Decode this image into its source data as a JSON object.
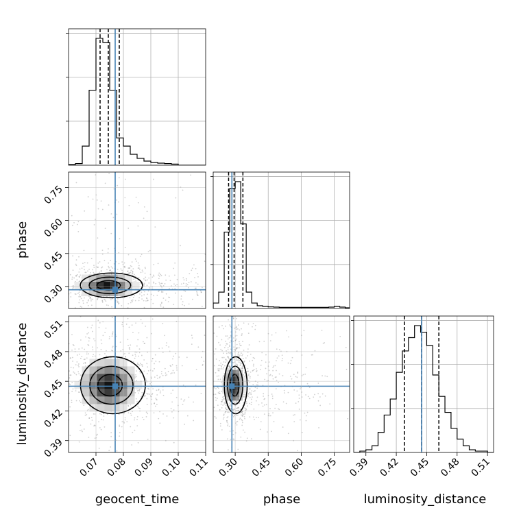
{
  "chart_data": {
    "type": "corner",
    "grid": true,
    "parameters": [
      "geocent_time",
      "phase",
      "luminosity_distance"
    ],
    "truths": {
      "geocent_time": 0.077,
      "phase": 0.285,
      "luminosity_distance": 0.445
    },
    "truth_color": "#4682b4",
    "contour_color": "#000000",
    "axes": {
      "geocent_time": {
        "range": [
          0.06,
          0.11
        ],
        "ticks": [
          0.07,
          0.08,
          0.09,
          0.1,
          0.11
        ],
        "tick_labels": [
          "0.07",
          "0.08",
          "0.09",
          "0.10",
          "0.11"
        ]
      },
      "phase": {
        "range": [
          0.2,
          0.82
        ],
        "ticks": [
          0.3,
          0.45,
          0.6,
          0.75
        ],
        "tick_labels": [
          "0.30",
          "0.45",
          "0.60",
          "0.75"
        ]
      },
      "luminosity_distance": {
        "range": [
          0.378,
          0.516
        ],
        "ticks": [
          0.39,
          0.42,
          0.45,
          0.48,
          0.51
        ],
        "tick_labels": [
          "0.39",
          "0.42",
          "0.45",
          "0.48",
          "0.51"
        ]
      }
    },
    "histograms": [
      {
        "parameter": "geocent_time",
        "bin_edges": [
          0.06,
          0.0625,
          0.065,
          0.0675,
          0.07,
          0.0725,
          0.075,
          0.0775,
          0.08,
          0.0825,
          0.085,
          0.0875,
          0.09,
          0.0925,
          0.095,
          0.0975,
          0.1,
          0.1025,
          0.105,
          0.1075,
          0.11
        ],
        "counts": [
          0.005,
          0.012,
          0.14,
          0.55,
          0.93,
          0.9,
          0.55,
          0.2,
          0.14,
          0.08,
          0.05,
          0.03,
          0.02,
          0.015,
          0.012,
          0.008,
          0.0,
          0.0,
          0.0,
          0.0
        ],
        "quantile_lines": [
          0.0715,
          0.0745,
          0.0785
        ]
      },
      {
        "parameter": "phase",
        "bin_edges": [
          0.2,
          0.225,
          0.25,
          0.275,
          0.3,
          0.325,
          0.35,
          0.375,
          0.4,
          0.425,
          0.45,
          0.475,
          0.5,
          0.525,
          0.55,
          0.575,
          0.6,
          0.625,
          0.65,
          0.675,
          0.7,
          0.725,
          0.75,
          0.775,
          0.8,
          0.82
        ],
        "counts": [
          0.04,
          0.12,
          0.56,
          0.88,
          0.93,
          0.62,
          0.12,
          0.04,
          0.02,
          0.015,
          0.012,
          0.01,
          0.008,
          0.008,
          0.008,
          0.008,
          0.008,
          0.008,
          0.008,
          0.008,
          0.008,
          0.01,
          0.015,
          0.01,
          0.005
        ],
        "quantile_lines": [
          0.27,
          0.295,
          0.335
        ]
      },
      {
        "parameter": "luminosity_distance",
        "bin_edges": [
          0.378,
          0.384,
          0.39,
          0.396,
          0.402,
          0.408,
          0.414,
          0.42,
          0.426,
          0.432,
          0.438,
          0.444,
          0.45,
          0.456,
          0.462,
          0.468,
          0.474,
          0.48,
          0.486,
          0.492,
          0.498,
          0.504,
          0.51,
          0.516
        ],
        "counts": [
          0.0,
          0.01,
          0.02,
          0.05,
          0.15,
          0.28,
          0.4,
          0.6,
          0.76,
          0.86,
          0.95,
          0.9,
          0.8,
          0.58,
          0.42,
          0.3,
          0.18,
          0.1,
          0.05,
          0.02,
          0.01,
          0.01,
          0.0
        ],
        "quantile_lines": [
          0.428,
          0.445,
          0.462
        ]
      }
    ],
    "contour_panels": [
      {
        "x": "geocent_time",
        "y": "phase",
        "center": [
          0.074,
          0.305
        ],
        "spread": [
          0.0048,
          0.025
        ]
      },
      {
        "x": "geocent_time",
        "y": "luminosity_distance",
        "center": [
          0.0745,
          0.446
        ],
        "spread": [
          0.005,
          0.0128
        ]
      },
      {
        "x": "phase",
        "y": "luminosity_distance",
        "center": [
          0.295,
          0.446
        ],
        "spread": [
          0.022,
          0.0128
        ]
      }
    ]
  }
}
